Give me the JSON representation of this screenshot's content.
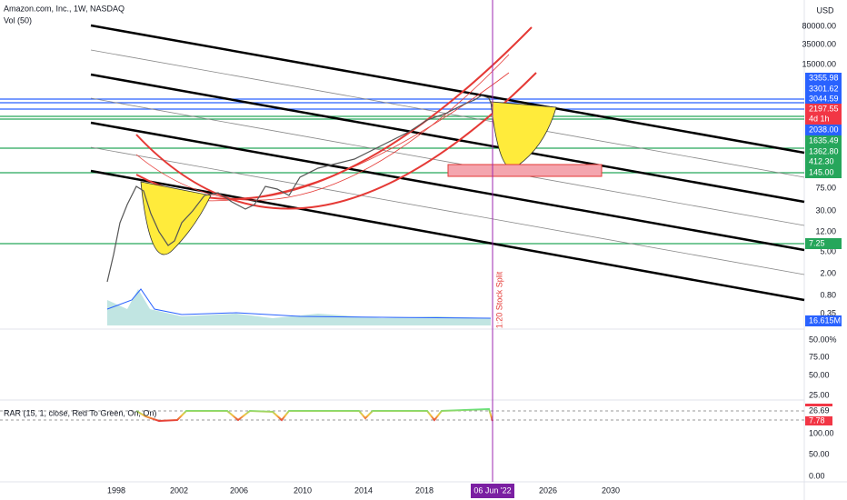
{
  "header": {
    "symbol": "Amazon.com, Inc., 1W, NASDAQ",
    "volume": "Vol (50)"
  },
  "price_axis": {
    "currency": "USD",
    "labels": [
      "80000.00",
      "35000.00",
      "15000.00",
      "75.00",
      "30.00",
      "12.00",
      "5.00",
      "2.00",
      "0.80",
      "0.35"
    ]
  },
  "price_tags": [
    {
      "label": "3355.98",
      "color": "#2962ff"
    },
    {
      "label": "3301.62",
      "color": "#2962ff"
    },
    {
      "label": "3044.59",
      "color": "#2962ff"
    },
    {
      "label": "2197.55",
      "color": "#f23645"
    },
    {
      "label": "4d 1h",
      "color": "#f23645"
    },
    {
      "label": "2038.00",
      "color": "#2962ff"
    },
    {
      "label": "1635.49",
      "color": "#26a65b"
    },
    {
      "label": "1362.80",
      "color": "#26a65b"
    },
    {
      "label": "412.30",
      "color": "#26a65b"
    },
    {
      "label": "145.00",
      "color": "#26a65b"
    },
    {
      "label": "7.25",
      "color": "#26a65b"
    },
    {
      "label": "16.615M",
      "color": "#2962ff"
    }
  ],
  "annotation": "1:20 Stock Split",
  "pane2": {
    "labels": [
      "50.00%",
      "75.00",
      "50.00",
      "25.00"
    ]
  },
  "rar": {
    "label": "RAR (15, 1, close, Red To Green, On, On)",
    "tags": [
      {
        "label": "26.69",
        "color": "#ffffff"
      },
      {
        "label": "7.78",
        "color": "#f23645"
      }
    ],
    "labels": [
      "100.00",
      "50.00",
      "0.00"
    ]
  },
  "time_axis": {
    "labels": [
      "1998",
      "2002",
      "2006",
      "2010",
      "2014",
      "2018",
      "2026",
      "2030"
    ],
    "cursor": "06 Jun '22"
  }
}
